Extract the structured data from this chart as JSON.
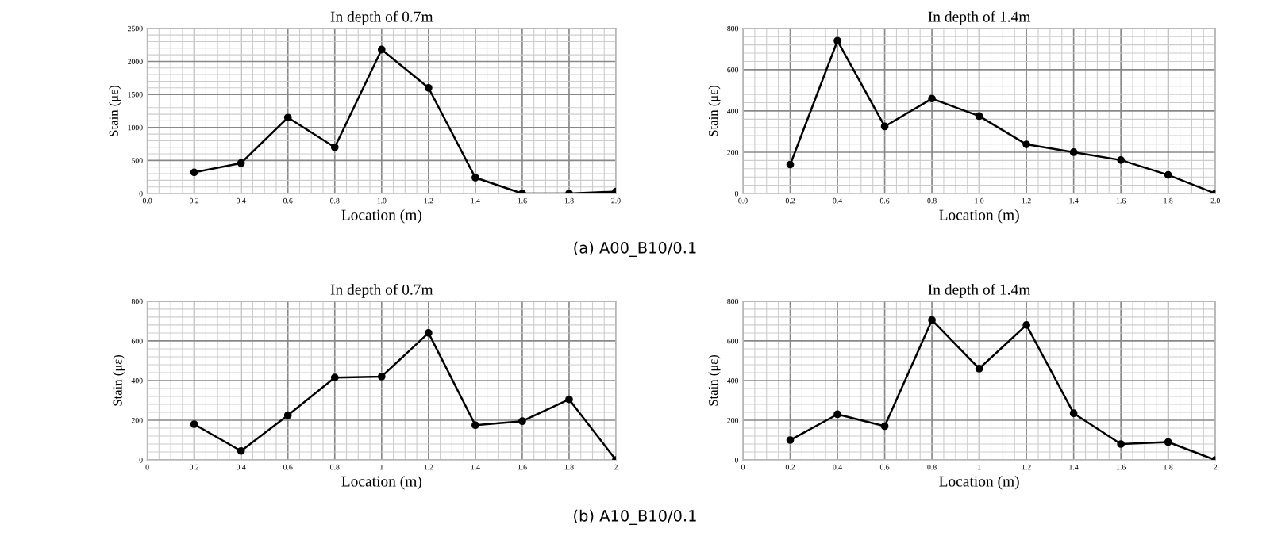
{
  "chart_data": [
    {
      "type": "line",
      "title": "In depth of 0.7m",
      "xlabel": "Location (m)",
      "ylabel": "Stain (με)",
      "x": [
        0.2,
        0.4,
        0.6,
        0.8,
        1.0,
        1.2,
        1.4,
        1.6,
        1.8,
        2.0
      ],
      "series": [
        {
          "color": "#000000",
          "values": [
            320,
            460,
            1150,
            700,
            2180,
            1600,
            240,
            0,
            0,
            30
          ]
        }
      ],
      "xlim": [
        0,
        2
      ],
      "xticks": [
        {
          "value": 0,
          "label": "0.0"
        },
        0.2,
        0.4,
        0.6,
        0.8,
        {
          "value": 1,
          "label": "1.0"
        },
        1.2,
        1.4,
        1.6,
        1.8,
        {
          "value": 2,
          "label": "2.0"
        }
      ],
      "ylim": [
        0,
        2500
      ],
      "yticks": [
        0,
        500,
        1000,
        1500,
        2000,
        2500
      ],
      "grid": true,
      "marker": "circle",
      "line_style": "solid"
    },
    {
      "type": "line",
      "title": "In depth of 1.4m",
      "xlabel": "Location (m)",
      "ylabel": "Stain (με)",
      "x": [
        0.2,
        0.4,
        0.6,
        0.8,
        1.0,
        1.2,
        1.4,
        1.6,
        1.8,
        2.0
      ],
      "series": [
        {
          "color": "#000000",
          "values": [
            140,
            740,
            325,
            460,
            375,
            238,
            200,
            162,
            90,
            0
          ]
        }
      ],
      "xlim": [
        0,
        2
      ],
      "xticks": [
        {
          "value": 0,
          "label": "0.0"
        },
        0.2,
        0.4,
        0.6,
        0.8,
        {
          "value": 1,
          "label": "1.0"
        },
        1.2,
        1.4,
        1.6,
        1.8,
        {
          "value": 2,
          "label": "2.0"
        }
      ],
      "ylim": [
        0,
        800
      ],
      "yticks": [
        0,
        200,
        400,
        600,
        800
      ],
      "grid": true,
      "marker": "circle",
      "line_style": "solid",
      "annotations": [
        "(a) A00_B10/0.1"
      ]
    },
    {
      "type": "line",
      "title": "In depth of 0.7m",
      "xlabel": "Location (m)",
      "ylabel": "Stain (με)",
      "x": [
        0.2,
        0.4,
        0.6,
        0.8,
        1.0,
        1.2,
        1.4,
        1.6,
        1.8,
        2.0
      ],
      "series": [
        {
          "color": "#000000",
          "values": [
            180,
            45,
            225,
            415,
            420,
            640,
            175,
            195,
            305,
            0
          ]
        }
      ],
      "xlim": [
        0,
        2
      ],
      "xticks": [
        0,
        0.2,
        0.4,
        0.6,
        0.8,
        1,
        1.2,
        1.4,
        1.6,
        1.8,
        2
      ],
      "ylim": [
        0,
        800
      ],
      "yticks": [
        0,
        200,
        400,
        600,
        800
      ],
      "grid": true,
      "marker": "circle",
      "line_style": "solid"
    },
    {
      "type": "line",
      "title": "In depth of 1.4m",
      "xlabel": "Location (m)",
      "ylabel": "Stain (με)",
      "x": [
        0.2,
        0.4,
        0.6,
        0.8,
        1.0,
        1.2,
        1.4,
        1.6,
        1.8,
        2.0
      ],
      "series": [
        {
          "color": "#000000",
          "values": [
            100,
            230,
            170,
            705,
            460,
            680,
            235,
            80,
            90,
            0
          ]
        }
      ],
      "xlim": [
        0,
        2
      ],
      "xticks": [
        0,
        0.2,
        0.4,
        0.6,
        0.8,
        1,
        1.2,
        1.4,
        1.6,
        1.8,
        2
      ],
      "ylim": [
        0,
        800
      ],
      "yticks": [
        0,
        200,
        400,
        600,
        800
      ],
      "grid": true,
      "marker": "circle",
      "line_style": "solid",
      "annotations": [
        "(b) A10_B10/0.1"
      ]
    }
  ]
}
